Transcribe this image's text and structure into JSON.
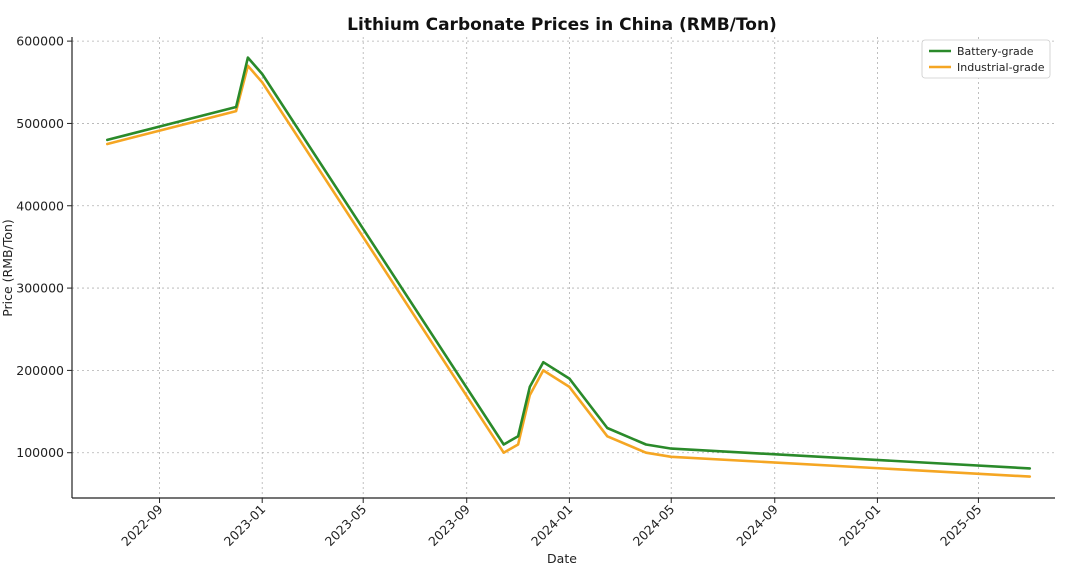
{
  "chart_data": {
    "type": "line",
    "title": "Lithium Carbonate Prices in China (RMB/Ton)",
    "xlabel": "Date",
    "ylabel": "Price (RMB/Ton)",
    "x_type": "date",
    "xlim": [
      "2022-05-20",
      "2025-07-31"
    ],
    "ylim": [
      45000,
      605000
    ],
    "x_ticks": [
      "2022-09",
      "2023-01",
      "2023-05",
      "2023-09",
      "2024-01",
      "2024-05",
      "2024-09",
      "2025-01",
      "2025-05"
    ],
    "y_ticks": [
      100000,
      200000,
      300000,
      400000,
      500000,
      600000
    ],
    "grid": true,
    "legend_position": "top-right",
    "series": [
      {
        "name": "Battery-grade",
        "color": "#2a8a2a",
        "points": [
          [
            "2022-07-01",
            480000
          ],
          [
            "2022-12-01",
            520000
          ],
          [
            "2022-12-15",
            580000
          ],
          [
            "2023-01-01",
            560000
          ],
          [
            "2023-10-15",
            110000
          ],
          [
            "2023-11-01",
            120000
          ],
          [
            "2023-11-15",
            180000
          ],
          [
            "2023-12-01",
            210000
          ],
          [
            "2024-01-01",
            190000
          ],
          [
            "2024-02-15",
            130000
          ],
          [
            "2024-04-01",
            110000
          ],
          [
            "2024-05-01",
            105000
          ],
          [
            "2025-07-01",
            81000
          ]
        ]
      },
      {
        "name": "Industrial-grade",
        "color": "#f5a623",
        "points": [
          [
            "2022-07-01",
            475000
          ],
          [
            "2022-12-01",
            515000
          ],
          [
            "2022-12-15",
            570000
          ],
          [
            "2023-01-01",
            550000
          ],
          [
            "2023-10-15",
            100000
          ],
          [
            "2023-11-01",
            110000
          ],
          [
            "2023-11-15",
            170000
          ],
          [
            "2023-12-01",
            200000
          ],
          [
            "2024-01-01",
            180000
          ],
          [
            "2024-02-15",
            120000
          ],
          [
            "2024-04-01",
            100000
          ],
          [
            "2024-05-01",
            95000
          ],
          [
            "2025-07-01",
            71000
          ]
        ]
      }
    ]
  }
}
